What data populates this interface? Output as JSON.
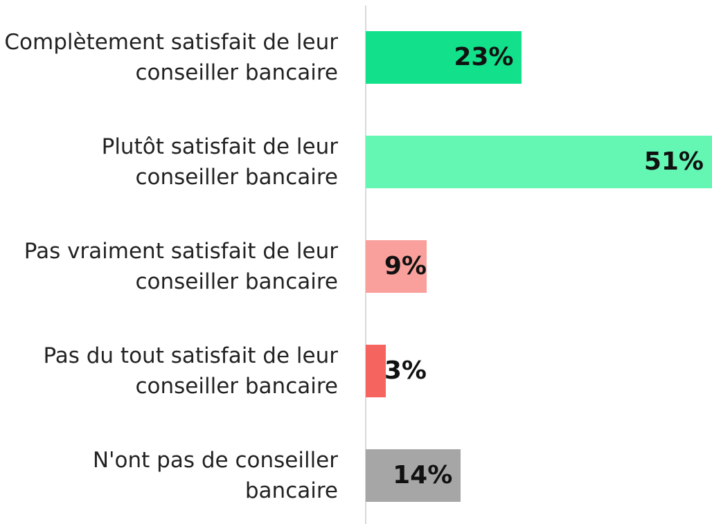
{
  "chart_data": {
    "type": "barh",
    "categories": [
      "Complètement satisfait de leur conseiller bancaire",
      "Plutôt satisfait de leur conseiller bancaire",
      "Pas vraiment satisfait de leur conseiller bancaire",
      "Pas du tout satisfait de leur conseiller bancaire",
      "N'ont pas de conseiller bancaire"
    ],
    "values": [
      23,
      51,
      9,
      3,
      14
    ],
    "value_labels": [
      "23%",
      "51%",
      "9%",
      "3%",
      "14%"
    ],
    "colors": [
      "#12e08a",
      "#64f7b4",
      "#f9a09c",
      "#f5645f",
      "#a6a6a6"
    ],
    "xlim": [
      0,
      51
    ]
  }
}
